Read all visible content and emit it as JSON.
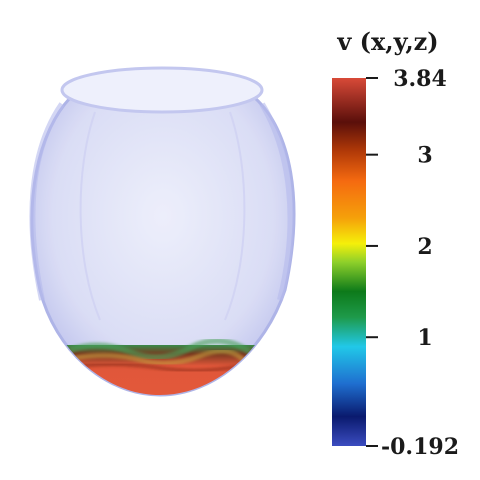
{
  "colorbar": {
    "title": "v (x,y,z)",
    "max_label": "3.84",
    "min_label": "-0.192",
    "range": [
      -0.192,
      3.84
    ],
    "ticks": [
      {
        "value": 3.84,
        "label": "3.84"
      },
      {
        "value": 3,
        "label": "3"
      },
      {
        "value": 2,
        "label": "2"
      },
      {
        "value": 1,
        "label": "1"
      },
      {
        "value": -0.192,
        "label": "-0.192"
      }
    ],
    "colormap": [
      "#3b4cc0",
      "#0a1a6e",
      "#1f6fd0",
      "#21c8e8",
      "#1e9a4a",
      "#0d7a1a",
      "#8fd02a",
      "#f5f00a",
      "#f5a00a",
      "#f56a10",
      "#b23a08",
      "#5a0f0a",
      "#d84a38"
    ]
  },
  "scene": {
    "vessel_color": "#c9cdf0",
    "fluid_color": "#e0573a"
  }
}
